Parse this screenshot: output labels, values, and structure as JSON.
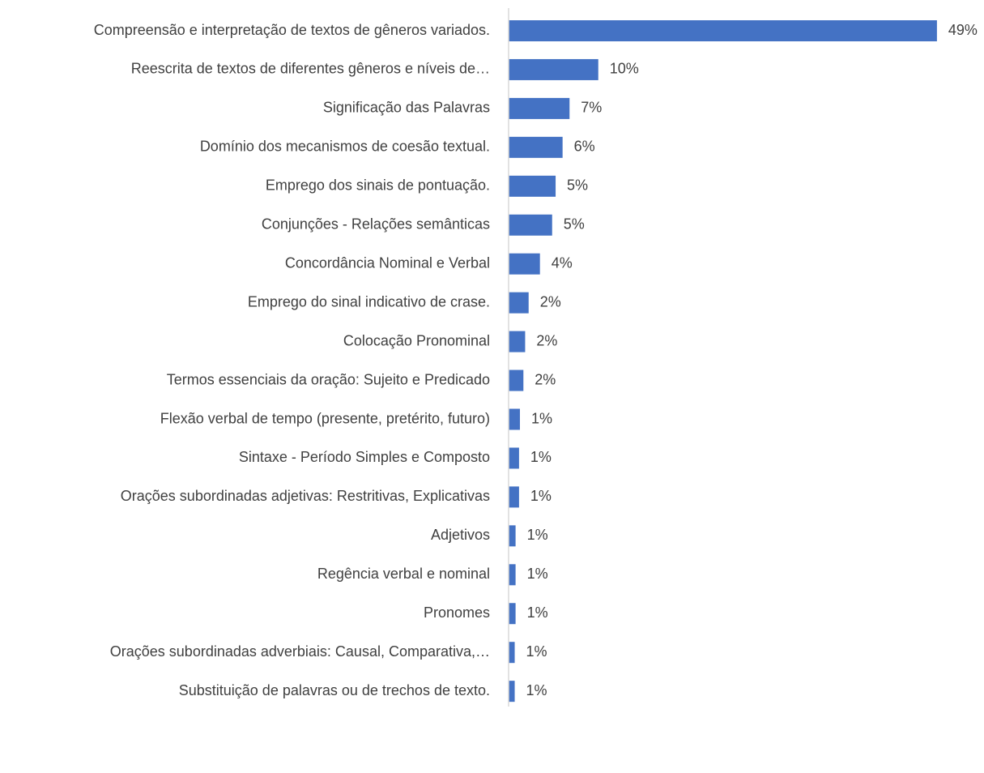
{
  "chart_data": {
    "type": "bar",
    "orientation": "horizontal",
    "color": "#4472c4",
    "categories": [
      "Compreensão e interpretação de textos de gêneros variados.",
      "Reescrita de textos de diferentes gêneros e níveis de…",
      "Significação das Palavras",
      "Domínio dos mecanismos de coesão textual.",
      "Emprego dos sinais de pontuação.",
      "Conjunções - Relações semânticas",
      "Concordância Nominal e Verbal",
      "Emprego do sinal indicativo de crase.",
      "Colocação Pronominal",
      "Termos essenciais da oração: Sujeito e Predicado",
      "Flexão verbal de tempo (presente, pretérito, futuro)",
      "Sintaxe - Período Simples e Composto",
      "Orações subordinadas adjetivas: Restritivas, Explicativas",
      "Adjetivos",
      "Regência verbal e nominal",
      "Pronomes",
      "Orações subordinadas adverbiais: Causal, Comparativa,…",
      "Substituição de palavras ou de trechos de texto."
    ],
    "values": [
      49.2,
      10.3,
      7.0,
      6.2,
      5.4,
      5.0,
      3.6,
      2.3,
      1.9,
      1.7,
      1.3,
      1.2,
      1.2,
      0.8,
      0.8,
      0.8,
      0.7,
      0.7
    ],
    "value_labels": [
      "49%",
      "10%",
      "7%",
      "6%",
      "5%",
      "5%",
      "4%",
      "2%",
      "2%",
      "2%",
      "1%",
      "1%",
      "1%",
      "1%",
      "1%",
      "1%",
      "1%",
      "1%"
    ],
    "xlim": [
      0,
      50
    ]
  }
}
